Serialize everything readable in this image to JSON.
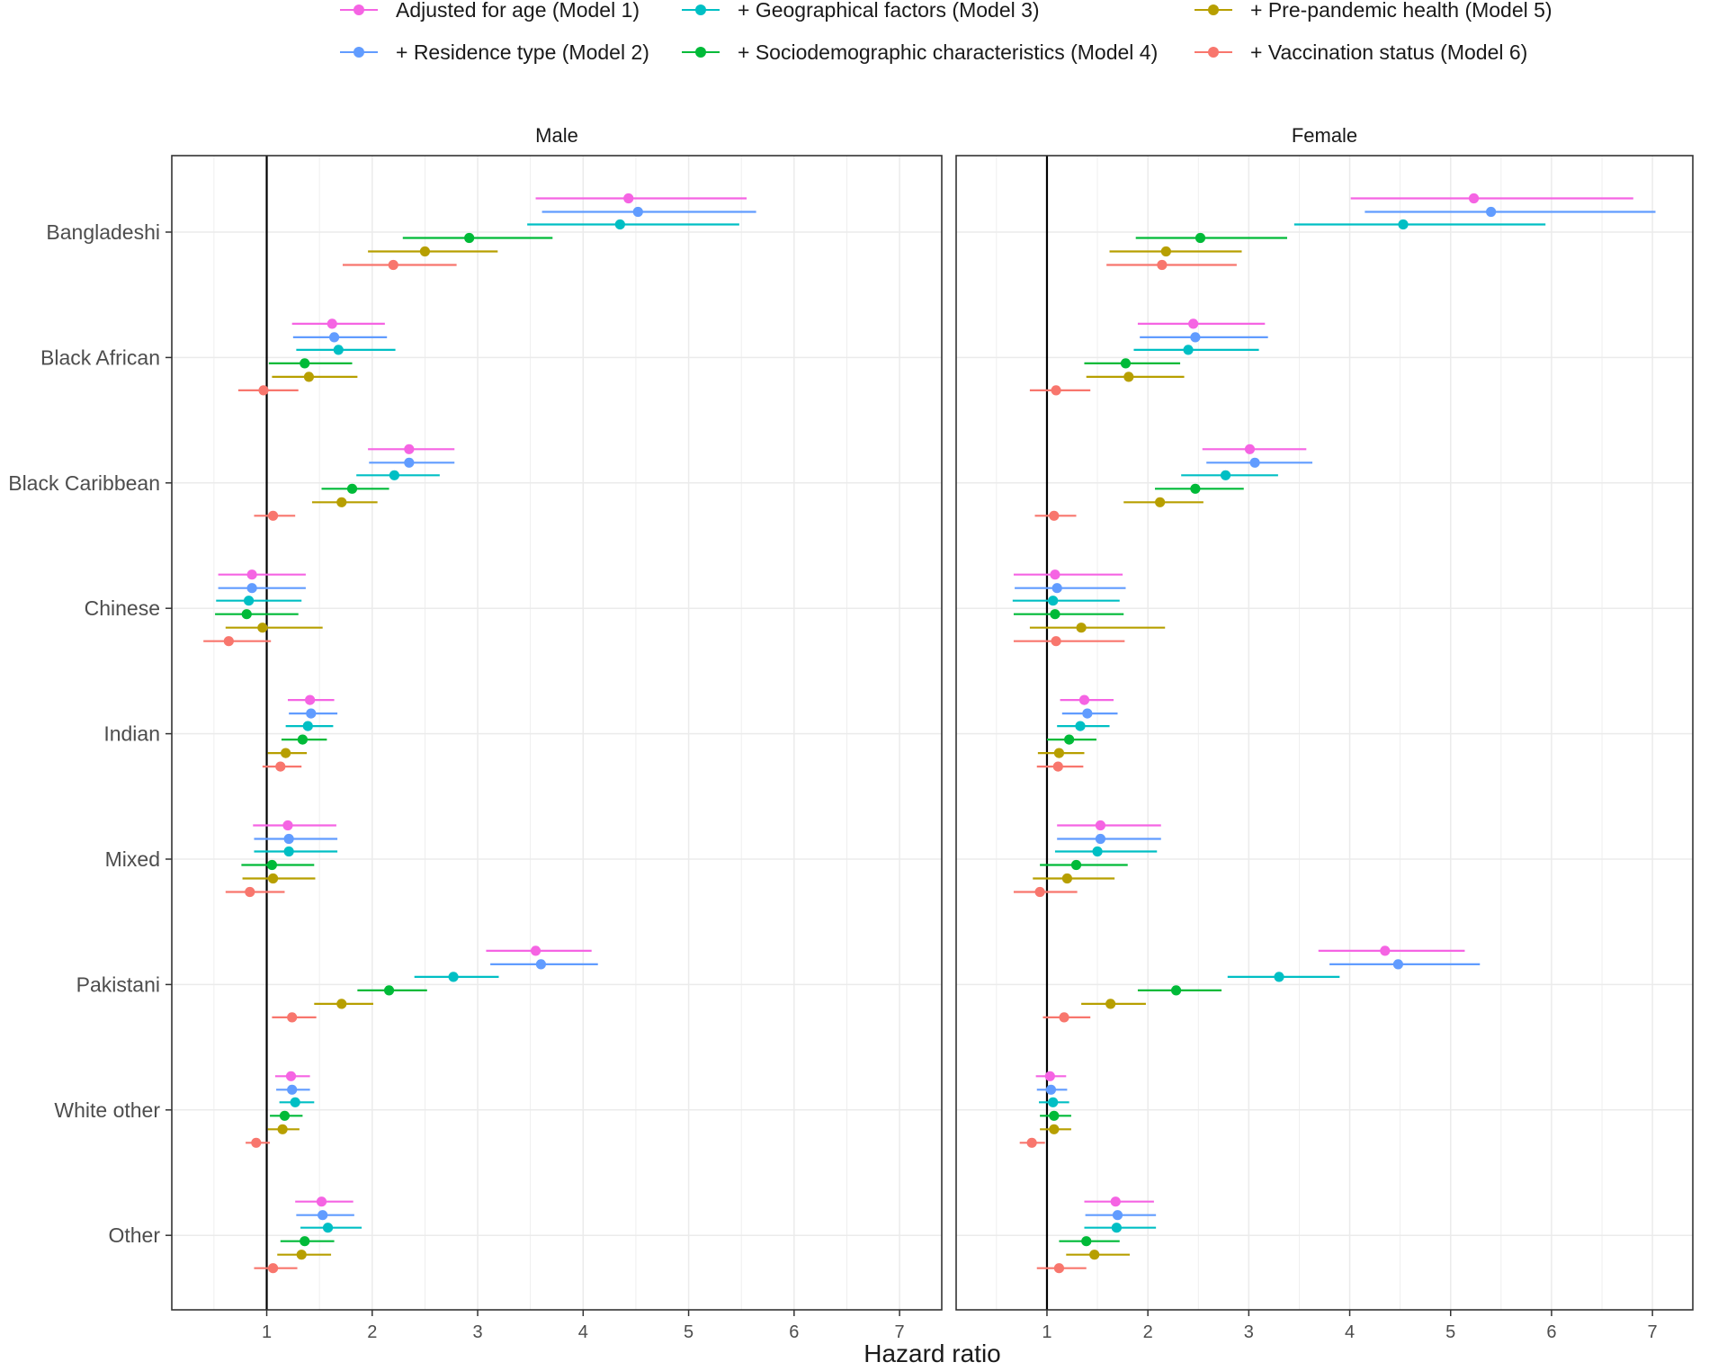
{
  "chart_data": {
    "type": "forest",
    "xlabel": "Hazard ratio",
    "ylabel": "",
    "xlim": [
      0.1,
      7.4
    ],
    "xticks": [
      1,
      2,
      3,
      4,
      5,
      6,
      7
    ],
    "reference_line": 1,
    "grid": true,
    "legend_position": "top",
    "categories": [
      "Bangladeshi",
      "Black African",
      "Black Caribbean",
      "Chinese",
      "Indian",
      "Mixed",
      "Pakistani",
      "White other",
      "Other"
    ],
    "series": [
      {
        "name": "Adjusted for age (Model 1)",
        "color": "#F564E3"
      },
      {
        "name": "+ Residence type (Model 2)",
        "color": "#619CFF"
      },
      {
        "name": "+ Geographical factors (Model 3)",
        "color": "#00BFC4"
      },
      {
        "name": "+ Sociodemographic characteristics (Model 4)",
        "color": "#00BA38"
      },
      {
        "name": "+ Pre-pandemic health (Model 5)",
        "color": "#B79F00"
      },
      {
        "name": "+ Vaccination status (Model 6)",
        "color": "#F8766D"
      }
    ],
    "panels": [
      {
        "name": "Male",
        "data": {
          "Bangladeshi": [
            {
              "model": 1,
              "hr": 4.43,
              "lo": 3.55,
              "hi": 5.55
            },
            {
              "model": 2,
              "hr": 4.52,
              "lo": 3.61,
              "hi": 5.64
            },
            {
              "model": 3,
              "hr": 4.35,
              "lo": 3.47,
              "hi": 5.48
            },
            {
              "model": 4,
              "hr": 2.92,
              "lo": 2.29,
              "hi": 3.71
            },
            {
              "model": 5,
              "hr": 2.5,
              "lo": 1.96,
              "hi": 3.19
            },
            {
              "model": 6,
              "hr": 2.2,
              "lo": 1.72,
              "hi": 2.8
            }
          ],
          "Black African": [
            {
              "model": 1,
              "hr": 1.62,
              "lo": 1.24,
              "hi": 2.12
            },
            {
              "model": 2,
              "hr": 1.64,
              "lo": 1.25,
              "hi": 2.14
            },
            {
              "model": 3,
              "hr": 1.68,
              "lo": 1.28,
              "hi": 2.22
            },
            {
              "model": 4,
              "hr": 1.36,
              "lo": 1.02,
              "hi": 1.81
            },
            {
              "model": 5,
              "hr": 1.4,
              "lo": 1.05,
              "hi": 1.86
            },
            {
              "model": 6,
              "hr": 0.97,
              "lo": 0.73,
              "hi": 1.3
            }
          ],
          "Black Caribbean": [
            {
              "model": 1,
              "hr": 2.35,
              "lo": 1.96,
              "hi": 2.78
            },
            {
              "model": 2,
              "hr": 2.35,
              "lo": 1.97,
              "hi": 2.78
            },
            {
              "model": 3,
              "hr": 2.21,
              "lo": 1.85,
              "hi": 2.64
            },
            {
              "model": 4,
              "hr": 1.81,
              "lo": 1.52,
              "hi": 2.16
            },
            {
              "model": 5,
              "hr": 1.71,
              "lo": 1.43,
              "hi": 2.05
            },
            {
              "model": 6,
              "hr": 1.06,
              "lo": 0.88,
              "hi": 1.27
            }
          ],
          "Chinese": [
            {
              "model": 1,
              "hr": 0.86,
              "lo": 0.54,
              "hi": 1.37
            },
            {
              "model": 2,
              "hr": 0.86,
              "lo": 0.54,
              "hi": 1.37
            },
            {
              "model": 3,
              "hr": 0.83,
              "lo": 0.52,
              "hi": 1.33
            },
            {
              "model": 4,
              "hr": 0.81,
              "lo": 0.51,
              "hi": 1.3
            },
            {
              "model": 5,
              "hr": 0.96,
              "lo": 0.61,
              "hi": 1.53
            },
            {
              "model": 6,
              "hr": 0.64,
              "lo": 0.4,
              "hi": 1.04
            }
          ],
          "Indian": [
            {
              "model": 1,
              "hr": 1.41,
              "lo": 1.2,
              "hi": 1.64
            },
            {
              "model": 2,
              "hr": 1.42,
              "lo": 1.21,
              "hi": 1.67
            },
            {
              "model": 3,
              "hr": 1.39,
              "lo": 1.18,
              "hi": 1.63
            },
            {
              "model": 4,
              "hr": 1.34,
              "lo": 1.14,
              "hi": 1.57
            },
            {
              "model": 5,
              "hr": 1.18,
              "lo": 1.01,
              "hi": 1.38
            },
            {
              "model": 6,
              "hr": 1.13,
              "lo": 0.96,
              "hi": 1.33
            }
          ],
          "Mixed": [
            {
              "model": 1,
              "hr": 1.2,
              "lo": 0.87,
              "hi": 1.66
            },
            {
              "model": 2,
              "hr": 1.21,
              "lo": 0.88,
              "hi": 1.67
            },
            {
              "model": 3,
              "hr": 1.21,
              "lo": 0.88,
              "hi": 1.67
            },
            {
              "model": 4,
              "hr": 1.05,
              "lo": 0.76,
              "hi": 1.45
            },
            {
              "model": 5,
              "hr": 1.06,
              "lo": 0.77,
              "hi": 1.46
            },
            {
              "model": 6,
              "hr": 0.84,
              "lo": 0.61,
              "hi": 1.17
            }
          ],
          "Pakistani": [
            {
              "model": 1,
              "hr": 3.55,
              "lo": 3.08,
              "hi": 4.08
            },
            {
              "model": 2,
              "hr": 3.6,
              "lo": 3.12,
              "hi": 4.14
            },
            {
              "model": 3,
              "hr": 2.77,
              "lo": 2.4,
              "hi": 3.2
            },
            {
              "model": 4,
              "hr": 2.16,
              "lo": 1.86,
              "hi": 2.52
            },
            {
              "model": 5,
              "hr": 1.71,
              "lo": 1.45,
              "hi": 2.01
            },
            {
              "model": 6,
              "hr": 1.24,
              "lo": 1.05,
              "hi": 1.47
            }
          ],
          "White other": [
            {
              "model": 1,
              "hr": 1.23,
              "lo": 1.08,
              "hi": 1.41
            },
            {
              "model": 2,
              "hr": 1.24,
              "lo": 1.09,
              "hi": 1.41
            },
            {
              "model": 3,
              "hr": 1.27,
              "lo": 1.12,
              "hi": 1.45
            },
            {
              "model": 4,
              "hr": 1.17,
              "lo": 1.03,
              "hi": 1.34
            },
            {
              "model": 5,
              "hr": 1.15,
              "lo": 1.01,
              "hi": 1.31
            },
            {
              "model": 6,
              "hr": 0.9,
              "lo": 0.8,
              "hi": 1.03
            }
          ],
          "Other": [
            {
              "model": 1,
              "hr": 1.52,
              "lo": 1.27,
              "hi": 1.82
            },
            {
              "model": 2,
              "hr": 1.53,
              "lo": 1.28,
              "hi": 1.83
            },
            {
              "model": 3,
              "hr": 1.58,
              "lo": 1.32,
              "hi": 1.9
            },
            {
              "model": 4,
              "hr": 1.36,
              "lo": 1.13,
              "hi": 1.64
            },
            {
              "model": 5,
              "hr": 1.33,
              "lo": 1.1,
              "hi": 1.61
            },
            {
              "model": 6,
              "hr": 1.06,
              "lo": 0.88,
              "hi": 1.29
            }
          ]
        }
      },
      {
        "name": "Female",
        "data": {
          "Bangladeshi": [
            {
              "model": 1,
              "hr": 5.23,
              "lo": 4.01,
              "hi": 6.81
            },
            {
              "model": 2,
              "hr": 5.4,
              "lo": 4.15,
              "hi": 7.03
            },
            {
              "model": 3,
              "hr": 4.53,
              "lo": 3.45,
              "hi": 5.94
            },
            {
              "model": 4,
              "hr": 2.52,
              "lo": 1.88,
              "hi": 3.38
            },
            {
              "model": 5,
              "hr": 2.18,
              "lo": 1.62,
              "hi": 2.93
            },
            {
              "model": 6,
              "hr": 2.14,
              "lo": 1.59,
              "hi": 2.88
            }
          ],
          "Black African": [
            {
              "model": 1,
              "hr": 2.45,
              "lo": 1.9,
              "hi": 3.16
            },
            {
              "model": 2,
              "hr": 2.47,
              "lo": 1.92,
              "hi": 3.19
            },
            {
              "model": 3,
              "hr": 2.4,
              "lo": 1.86,
              "hi": 3.1
            },
            {
              "model": 4,
              "hr": 1.78,
              "lo": 1.37,
              "hi": 2.32
            },
            {
              "model": 5,
              "hr": 1.81,
              "lo": 1.39,
              "hi": 2.36
            },
            {
              "model": 6,
              "hr": 1.09,
              "lo": 0.83,
              "hi": 1.43
            }
          ],
          "Black Caribbean": [
            {
              "model": 1,
              "hr": 3.01,
              "lo": 2.54,
              "hi": 3.57
            },
            {
              "model": 2,
              "hr": 3.06,
              "lo": 2.58,
              "hi": 3.63
            },
            {
              "model": 3,
              "hr": 2.77,
              "lo": 2.33,
              "hi": 3.29
            },
            {
              "model": 4,
              "hr": 2.47,
              "lo": 2.07,
              "hi": 2.95
            },
            {
              "model": 5,
              "hr": 2.12,
              "lo": 1.76,
              "hi": 2.55
            },
            {
              "model": 6,
              "hr": 1.07,
              "lo": 0.88,
              "hi": 1.29
            }
          ],
          "Chinese": [
            {
              "model": 1,
              "hr": 1.08,
              "lo": 0.67,
              "hi": 1.75
            },
            {
              "model": 2,
              "hr": 1.1,
              "lo": 0.68,
              "hi": 1.78
            },
            {
              "model": 3,
              "hr": 1.06,
              "lo": 0.66,
              "hi": 1.72
            },
            {
              "model": 4,
              "hr": 1.08,
              "lo": 0.67,
              "hi": 1.76
            },
            {
              "model": 5,
              "hr": 1.34,
              "lo": 0.83,
              "hi": 2.17
            },
            {
              "model": 6,
              "hr": 1.09,
              "lo": 0.67,
              "hi": 1.77
            }
          ],
          "Indian": [
            {
              "model": 1,
              "hr": 1.37,
              "lo": 1.13,
              "hi": 1.66
            },
            {
              "model": 2,
              "hr": 1.4,
              "lo": 1.15,
              "hi": 1.7
            },
            {
              "model": 3,
              "hr": 1.33,
              "lo": 1.1,
              "hi": 1.62
            },
            {
              "model": 4,
              "hr": 1.22,
              "lo": 1.0,
              "hi": 1.49
            },
            {
              "model": 5,
              "hr": 1.12,
              "lo": 0.91,
              "hi": 1.37
            },
            {
              "model": 6,
              "hr": 1.11,
              "lo": 0.9,
              "hi": 1.36
            }
          ],
          "Mixed": [
            {
              "model": 1,
              "hr": 1.53,
              "lo": 1.1,
              "hi": 2.13
            },
            {
              "model": 2,
              "hr": 1.53,
              "lo": 1.1,
              "hi": 2.13
            },
            {
              "model": 3,
              "hr": 1.5,
              "lo": 1.08,
              "hi": 2.09
            },
            {
              "model": 4,
              "hr": 1.29,
              "lo": 0.93,
              "hi": 1.8
            },
            {
              "model": 5,
              "hr": 1.2,
              "lo": 0.86,
              "hi": 1.67
            },
            {
              "model": 6,
              "hr": 0.93,
              "lo": 0.67,
              "hi": 1.3
            }
          ],
          "Pakistani": [
            {
              "model": 1,
              "hr": 4.35,
              "lo": 3.69,
              "hi": 5.14
            },
            {
              "model": 2,
              "hr": 4.48,
              "lo": 3.8,
              "hi": 5.29
            },
            {
              "model": 3,
              "hr": 3.3,
              "lo": 2.79,
              "hi": 3.9
            },
            {
              "model": 4,
              "hr": 2.28,
              "lo": 1.9,
              "hi": 2.73
            },
            {
              "model": 5,
              "hr": 1.63,
              "lo": 1.34,
              "hi": 1.98
            },
            {
              "model": 6,
              "hr": 1.17,
              "lo": 0.96,
              "hi": 1.43
            }
          ],
          "White other": [
            {
              "model": 1,
              "hr": 1.03,
              "lo": 0.89,
              "hi": 1.19
            },
            {
              "model": 2,
              "hr": 1.04,
              "lo": 0.9,
              "hi": 1.2
            },
            {
              "model": 3,
              "hr": 1.06,
              "lo": 0.92,
              "hi": 1.22
            },
            {
              "model": 4,
              "hr": 1.07,
              "lo": 0.93,
              "hi": 1.24
            },
            {
              "model": 5,
              "hr": 1.07,
              "lo": 0.93,
              "hi": 1.24
            },
            {
              "model": 6,
              "hr": 0.85,
              "lo": 0.73,
              "hi": 0.98
            }
          ],
          "Other": [
            {
              "model": 1,
              "hr": 1.68,
              "lo": 1.37,
              "hi": 2.06
            },
            {
              "model": 2,
              "hr": 1.7,
              "lo": 1.38,
              "hi": 2.08
            },
            {
              "model": 3,
              "hr": 1.69,
              "lo": 1.37,
              "hi": 2.08
            },
            {
              "model": 4,
              "hr": 1.39,
              "lo": 1.12,
              "hi": 1.72
            },
            {
              "model": 5,
              "hr": 1.47,
              "lo": 1.19,
              "hi": 1.82
            },
            {
              "model": 6,
              "hr": 1.12,
              "lo": 0.9,
              "hi": 1.39
            }
          ]
        }
      }
    ]
  }
}
